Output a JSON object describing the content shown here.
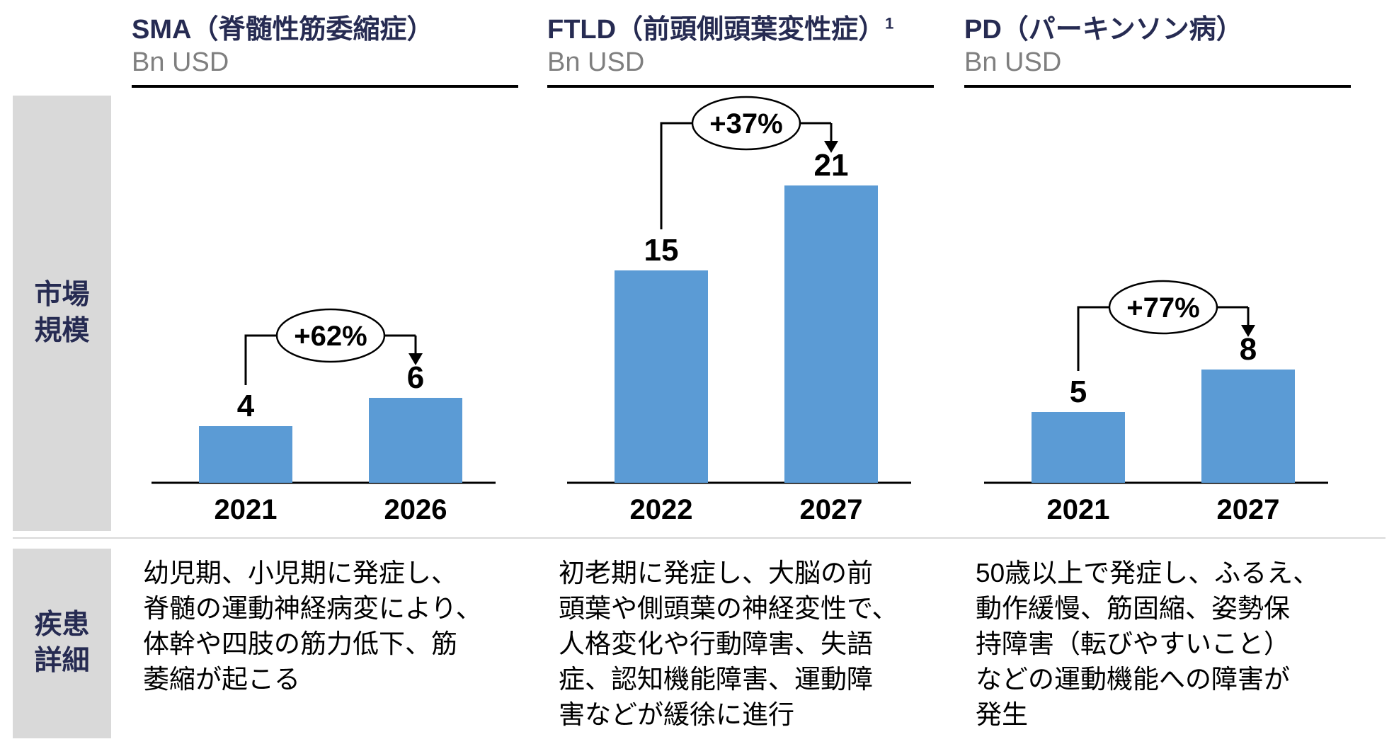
{
  "row_labels": {
    "market_size": "市場\n規模",
    "disease_detail": "疾患\n詳細"
  },
  "columns": [
    {
      "title": "SMA（脊髄性筋委縮症）",
      "title_sup": "",
      "unit": "Bn USD",
      "description": "幼児期、小児期に発症し、\n脊髄の運動神経病変により、\n体幹や四肢の筋力低下、筋\n萎縮が起こる"
    },
    {
      "title": "FTLD（前頭側頭葉変性症）",
      "title_sup": "1",
      "unit": "Bn USD",
      "description": "初老期に発症し、大脳の前\n頭葉や側頭葉の神経変性で、\n人格変化や行動障害、失語\n症、認知機能障害、運動障\n害などが緩徐に進行"
    },
    {
      "title": "PD（パーキンソン病）",
      "title_sup": "",
      "unit": "Bn USD",
      "description": "50歳以上で発症し、ふるえ、\n動作緩慢、筋固縮、姿勢保\n持障害（転びやすいこと）\nなどの運動機能への障害が\n発生"
    }
  ],
  "chart_data": [
    {
      "type": "bar",
      "title": "SMA（脊髄性筋委縮症）",
      "ylabel": "Bn USD",
      "categories": [
        "2021",
        "2026"
      ],
      "values": [
        4,
        6
      ],
      "growth_label": "+62%",
      "bar_color": "#5B9BD5",
      "ylim": [
        0,
        27
      ],
      "grid": false,
      "legend": "none"
    },
    {
      "type": "bar",
      "title": "FTLD（前頭側頭葉変性症）",
      "ylabel": "Bn USD",
      "categories": [
        "2022",
        "2027"
      ],
      "values": [
        15,
        21
      ],
      "growth_label": "+37%",
      "bar_color": "#5B9BD5",
      "ylim": [
        0,
        27
      ],
      "grid": false,
      "legend": "none"
    },
    {
      "type": "bar",
      "title": "PD（パーキンソン病）",
      "ylabel": "Bn USD",
      "categories": [
        "2021",
        "2027"
      ],
      "values": [
        5,
        8
      ],
      "growth_label": "+77%",
      "bar_color": "#5B9BD5",
      "ylim": [
        0,
        27
      ],
      "grid": false,
      "legend": "none"
    }
  ],
  "colors": {
    "accent_navy": "#262B52",
    "bar_blue": "#5B9BD5",
    "unit_gray": "#7F7F7F",
    "row_label_bg": "#D9D9D9",
    "line_black": "#000000"
  }
}
